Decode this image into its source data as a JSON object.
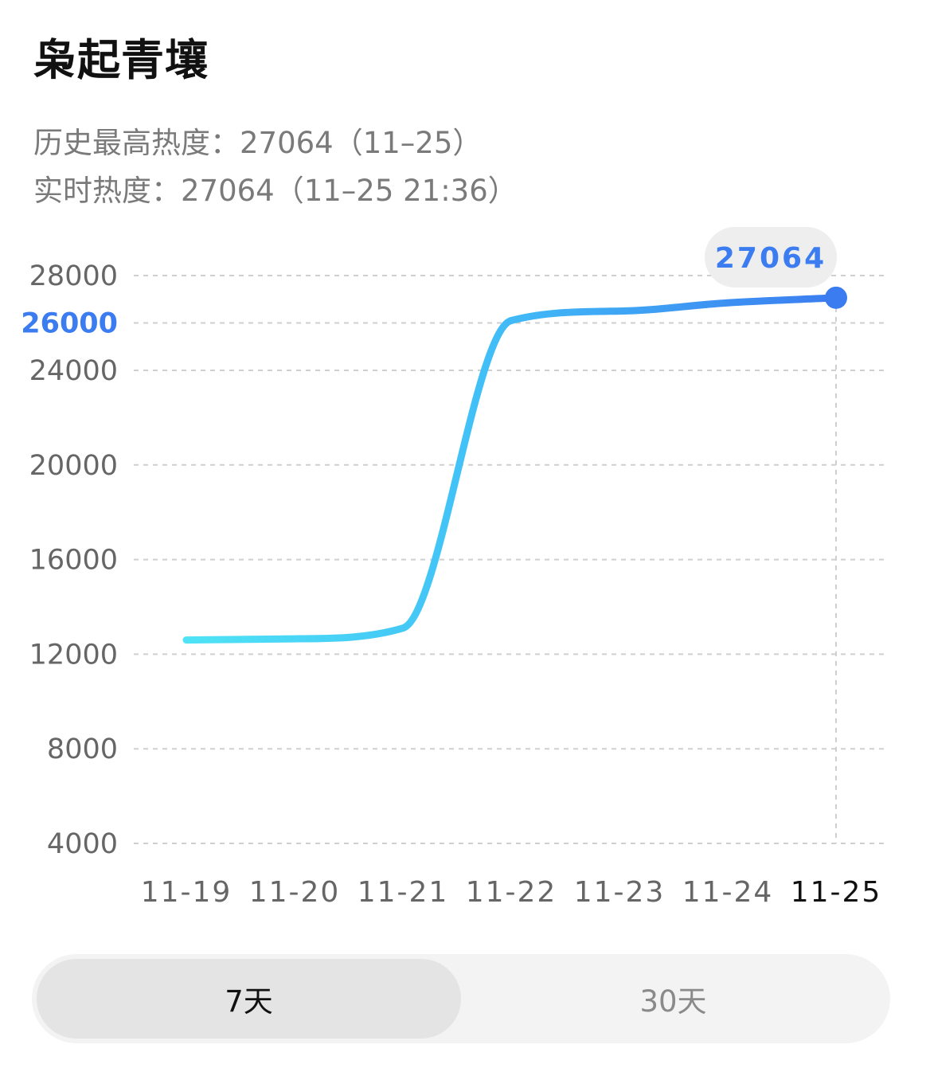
{
  "header": {
    "title": "枭起青壤",
    "peak_line": "历史最高热度：27064（11–25）",
    "realtime_line": "实时热度：27064（11–25 21:36）"
  },
  "tooltip": {
    "value": "27064"
  },
  "range_tabs": [
    {
      "label": "7天",
      "active": true
    },
    {
      "label": "30天",
      "active": false
    }
  ],
  "colors": {
    "line_start": "#4fe3f5",
    "line_mid": "#41c0f7",
    "line_end": "#3b7cf0",
    "highlight": "#3b7cf0",
    "grid": "#cfcfcf"
  },
  "chart_data": {
    "type": "line",
    "title": "",
    "xlabel": "",
    "ylabel": "",
    "categories": [
      "11-19",
      "11-20",
      "11-21",
      "11-22",
      "11-23",
      "11-24",
      "11-25"
    ],
    "x_tick_labels": [
      "11-19",
      "11-20",
      "11-21",
      "11-22",
      "11-23",
      "11-24",
      "11-25"
    ],
    "highlighted_x": "11-25",
    "y_ticks": [
      4000,
      8000,
      12000,
      16000,
      20000,
      24000,
      26000,
      28000
    ],
    "y_tick_labels": [
      "4000",
      "8000",
      "12000",
      "16000",
      "20000",
      "24000",
      "26000",
      "28000"
    ],
    "highlighted_y": "26000",
    "y_scale": [
      {
        "value": 4000
      },
      {
        "value": 24000
      },
      {
        "value": 28000
      }
    ],
    "grid": true,
    "legend": "none",
    "series": [
      {
        "values": [
          12600,
          12650,
          13100,
          26100,
          26500,
          26850,
          27064
        ]
      }
    ]
  }
}
